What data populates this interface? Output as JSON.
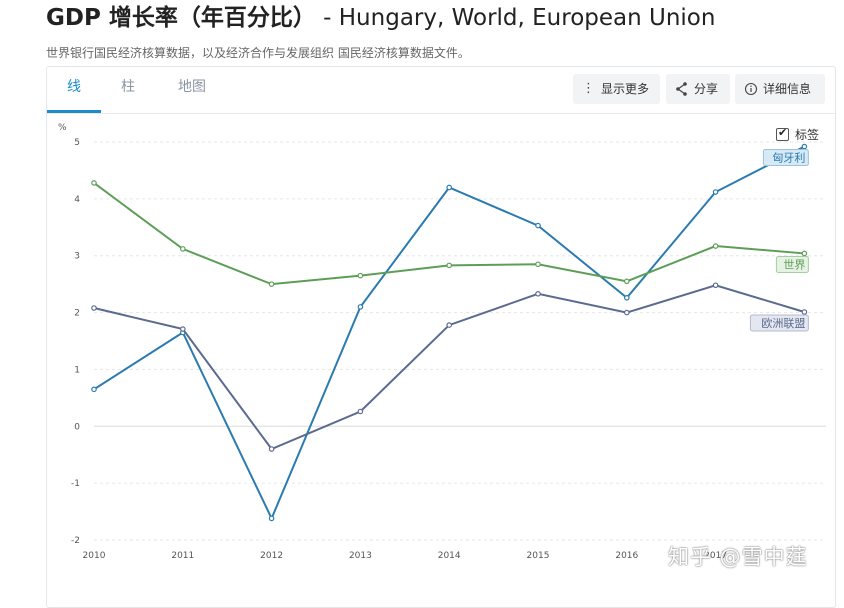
{
  "header": {
    "title_zh": "GDP 增长率（年百分比）",
    "title_countries": " - Hungary, World, European Union",
    "subtitle": "世界银行国民经济核算数据，以及经济合作与发展组织 国民经济核算数据文件。"
  },
  "tabs": [
    {
      "label": "线",
      "active": true
    },
    {
      "label": "柱",
      "active": false
    },
    {
      "label": "地图",
      "active": false
    }
  ],
  "toolbar": {
    "more_label": "显示更多",
    "share_label": "分享",
    "details_label": "详细信息"
  },
  "labels_toggle": {
    "label": "标签",
    "checked": true
  },
  "watermark": "知乎 @雪中莛",
  "chart_data": {
    "type": "line",
    "ylabel": "%",
    "ylim": [
      -2,
      5
    ],
    "yticks": [
      "5",
      "4",
      "3",
      "2",
      "1",
      "0",
      "-1",
      "-2"
    ],
    "x": [
      "2010",
      "2011",
      "2012",
      "2013",
      "2014",
      "2015",
      "2016",
      "2017",
      "2018"
    ],
    "xtick_labels": [
      "2010",
      "2011",
      "2012",
      "2013",
      "2014",
      "2015",
      "2016",
      "2017"
    ],
    "grid": true,
    "series": [
      {
        "name": "匈牙利",
        "color": "#2b7bb0",
        "values": [
          0.65,
          1.65,
          -1.62,
          2.1,
          4.2,
          3.53,
          2.26,
          4.12,
          4.92
        ]
      },
      {
        "name": "世界",
        "color": "#5d9e57",
        "values": [
          4.28,
          3.12,
          2.5,
          2.65,
          2.83,
          2.85,
          2.55,
          3.17,
          3.04
        ]
      },
      {
        "name": "欧洲联盟",
        "color": "#5b6a8e",
        "values": [
          2.08,
          1.71,
          -0.4,
          0.26,
          1.78,
          2.33,
          2.0,
          2.48,
          2.01
        ]
      }
    ]
  }
}
